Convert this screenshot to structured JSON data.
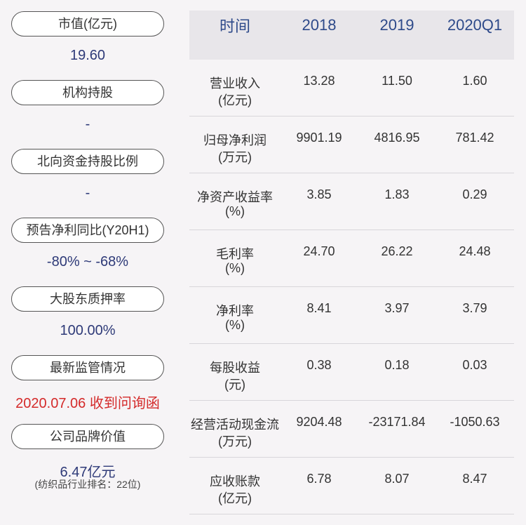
{
  "summary": [
    {
      "label": "市值(亿元)",
      "value": "19.60"
    },
    {
      "label": "机构持股",
      "value": "-"
    },
    {
      "label": "北向资金持股比例",
      "value": "-"
    },
    {
      "label": "预告净利同比(Y20H1)",
      "value": "-80% ~ -68%"
    },
    {
      "label": "大股东质押率",
      "value": "100.00%"
    },
    {
      "label": "最新监管情况",
      "value": "2020.07.06 收到问询函",
      "alert": true
    },
    {
      "label": "公司品牌价值",
      "value": "6.47亿元",
      "note": "(纺织品行业排名：22位)"
    }
  ],
  "table": {
    "header": [
      "时间",
      "2018",
      "2019",
      "2020Q1"
    ],
    "rows": [
      {
        "label": [
          "营业收入",
          "(亿元)"
        ],
        "values": [
          "13.28",
          "11.50",
          "1.60"
        ]
      },
      {
        "label": [
          "归母净利润",
          "(万元)"
        ],
        "values": [
          "9901.19",
          "4816.95",
          "781.42"
        ]
      },
      {
        "label": [
          "净资产收益率",
          "(%)"
        ],
        "values": [
          "3.85",
          "1.83",
          "0.29"
        ]
      },
      {
        "label": [
          "毛利率",
          "(%)"
        ],
        "values": [
          "24.70",
          "26.22",
          "24.48"
        ]
      },
      {
        "label": [
          "净利率",
          "(%)"
        ],
        "values": [
          "8.41",
          "3.97",
          "3.79"
        ]
      },
      {
        "label": [
          "每股收益",
          "(元)"
        ],
        "values": [
          "0.38",
          "0.18",
          "0.03"
        ]
      },
      {
        "label": [
          "经营活动现金流",
          "(万元)"
        ],
        "values": [
          "9204.48",
          "-23171.84",
          "-1050.63"
        ]
      },
      {
        "label": [
          "应收账款",
          "(亿元)"
        ],
        "values": [
          "6.78",
          "8.07",
          "8.47"
        ]
      }
    ]
  }
}
